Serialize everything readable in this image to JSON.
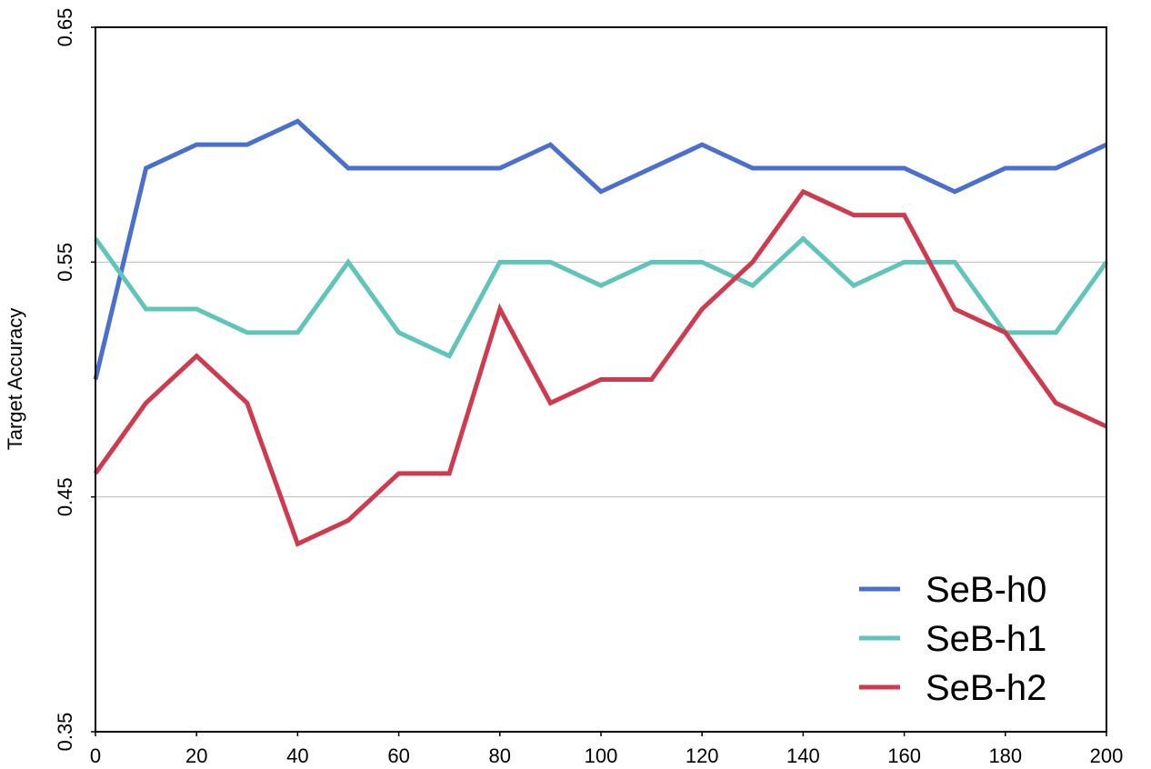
{
  "chart_data": {
    "type": "line",
    "title": "",
    "xlabel": "",
    "ylabel": "Target  Accuracy",
    "xlim": [
      0,
      200
    ],
    "ylim": [
      0.35,
      0.65
    ],
    "x_ticks": [
      "0",
      "20",
      "40",
      "60",
      "80",
      "100",
      "120",
      "140",
      "160",
      "180",
      "200"
    ],
    "y_ticks": [
      "0.35",
      "0.45",
      "0.55",
      "0.65"
    ],
    "x": [
      0,
      10,
      20,
      30,
      40,
      50,
      60,
      70,
      80,
      90,
      100,
      110,
      120,
      130,
      140,
      150,
      160,
      170,
      180,
      190,
      200
    ],
    "grid": "horizontal",
    "legend_position": "bottom-right",
    "series": [
      {
        "name": "SeB-h0",
        "color": "#4a6fce",
        "values": [
          0.5,
          0.59,
          0.6,
          0.6,
          0.61,
          0.59,
          0.59,
          0.59,
          0.59,
          0.6,
          0.58,
          0.59,
          0.6,
          0.59,
          0.59,
          0.59,
          0.59,
          0.58,
          0.59,
          0.59,
          0.6
        ]
      },
      {
        "name": "SeB-h1",
        "color": "#5fc5b8",
        "values": [
          0.56,
          0.53,
          0.53,
          0.52,
          0.52,
          0.55,
          0.52,
          0.51,
          0.55,
          0.55,
          0.54,
          0.55,
          0.55,
          0.54,
          0.56,
          0.54,
          0.55,
          0.55,
          0.52,
          0.52,
          0.55
        ]
      },
      {
        "name": "SeB-h2",
        "color": "#d03a4f",
        "values": [
          0.46,
          0.49,
          0.51,
          0.49,
          0.43,
          0.44,
          0.46,
          0.46,
          0.53,
          0.49,
          0.5,
          0.5,
          0.53,
          0.55,
          0.58,
          0.57,
          0.57,
          0.53,
          0.52,
          0.49,
          0.48
        ]
      }
    ]
  }
}
